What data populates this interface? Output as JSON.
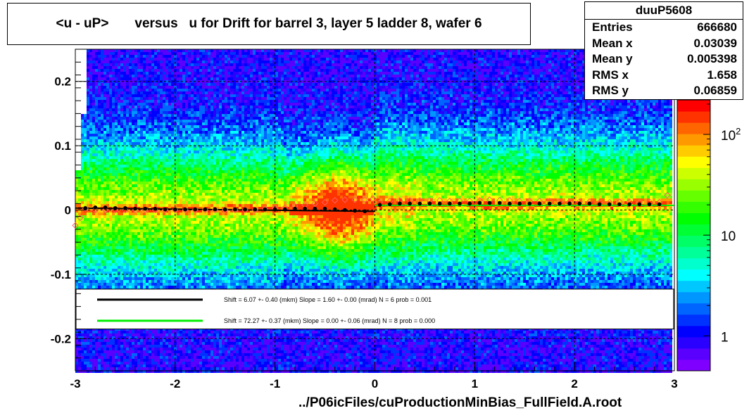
{
  "title": "<u - uP>       versus   u for Drift for barrel 3, layer 5 ladder 8, wafer 6",
  "footer": "../P06icFiles/cuProductionMinBias_FullField.A.root",
  "stats": {
    "name": "duuP5608",
    "rows": [
      {
        "label": "Entries",
        "value": "666680"
      },
      {
        "label": "Mean x",
        "value": "0.03039"
      },
      {
        "label": "Mean y",
        "value": "0.005398"
      },
      {
        "label": "RMS x",
        "value": "1.658"
      },
      {
        "label": "RMS y",
        "value": "0.06859"
      }
    ]
  },
  "legend": [
    {
      "color": "#000000",
      "text": "Shift =     6.07 +- 0.40 (mkm) Slope =     1.60 +- 0.00 (mrad)  N = 6 prob = 0.001"
    },
    {
      "color": "#00ee00",
      "text": "Shift =    72.27 +- 0.37 (mkm) Slope =     0.00 +- 0.06 (mrad)  N = 8 prob = 0.000"
    }
  ],
  "colorbar": {
    "labels": [
      {
        "text": "10",
        "sup": "2",
        "value": 100
      },
      {
        "text": "10",
        "sup": "",
        "value": 10
      },
      {
        "text": "1",
        "sup": "",
        "value": 1
      }
    ],
    "colors": [
      "#7f00ff",
      "#5a00ff",
      "#2a00ff",
      "#0000ff",
      "#0032ff",
      "#0064ff",
      "#0096ff",
      "#00c8ff",
      "#00ffff",
      "#00ffcc",
      "#00ff99",
      "#00ff66",
      "#00ff33",
      "#00ff00",
      "#33ff00",
      "#66ff00",
      "#99ff00",
      "#ccff00",
      "#ffff00",
      "#ffcc00",
      "#ff9900",
      "#ff6600",
      "#ff3300",
      "#ff0000"
    ]
  },
  "chart_data": {
    "type": "heatmap",
    "xlim": [
      -3,
      3
    ],
    "ylim": [
      -0.25,
      0.25
    ],
    "x_ticks": [
      -3,
      -2,
      -1,
      0,
      1,
      2,
      3
    ],
    "x_tick_labels": [
      "-3",
      "-2",
      "-1",
      "0",
      "1",
      "2",
      "3"
    ],
    "y_ticks": [
      -0.2,
      -0.1,
      0,
      0.1,
      0.2
    ],
    "y_tick_labels": [
      "-0.2",
      "-0.1",
      "0",
      "0.1",
      "0.2"
    ],
    "grid": true,
    "zscale": "log",
    "profile_black": {
      "x": [
        -2.9,
        -2.8,
        -2.7,
        -2.6,
        -2.5,
        -2.4,
        -2.3,
        -2.2,
        -2.1,
        -2.0,
        -1.9,
        -1.8,
        -1.7,
        -1.6,
        -1.5,
        -1.4,
        -1.3,
        -1.2,
        -1.1,
        -1.0,
        -0.9,
        -0.8,
        -0.7,
        -0.6,
        -0.5,
        -0.4,
        -0.3,
        -0.2,
        -0.1,
        0.05,
        0.15,
        0.25,
        0.35,
        0.45,
        0.55,
        0.65,
        0.75,
        0.85,
        0.95,
        1.05,
        1.15,
        1.25,
        1.35,
        1.45,
        1.55,
        1.65,
        1.75,
        1.85,
        1.95,
        2.05,
        2.15,
        2.25,
        2.35,
        2.45,
        2.55,
        2.65,
        2.75,
        2.85
      ],
      "y": [
        0.003,
        0.004,
        0.004,
        0.003,
        0.003,
        0.002,
        0.002,
        0.002,
        0.001,
        0.001,
        0.001,
        0.001,
        0.001,
        0.001,
        0.001,
        0.001,
        0.001,
        0.001,
        0.001,
        0.001,
        0.001,
        0.002,
        0.002,
        0.002,
        0.002,
        0.001,
        0.0,
        -0.001,
        -0.002,
        0.008,
        0.009,
        0.01,
        0.01,
        0.01,
        0.01,
        0.01,
        0.01,
        0.01,
        0.01,
        0.011,
        0.011,
        0.011,
        0.01,
        0.01,
        0.01,
        0.01,
        0.01,
        0.01,
        0.01,
        0.01,
        0.01,
        0.009,
        0.009,
        0.009,
        0.009,
        0.009,
        0.009,
        0.009
      ]
    },
    "profile_red": {
      "x": [
        -3.0,
        -2.95,
        -2.9,
        -2.8,
        -2.7,
        -2.6,
        -2.5,
        -2.4,
        -2.3,
        -2.2,
        -2.1,
        -2.0,
        -1.9,
        -1.8,
        -1.7,
        -1.6,
        -1.5,
        -1.4,
        -1.3,
        -1.2,
        -1.1,
        -1.0,
        -0.9,
        -0.8,
        -0.7,
        -0.6,
        -0.5,
        -0.4,
        -0.3,
        -0.2,
        -0.1,
        -0.02,
        0.05,
        0.15,
        0.25,
        0.35,
        0.45,
        0.55,
        0.65,
        0.75,
        0.85,
        0.95,
        1.05,
        1.15,
        1.25,
        1.35,
        1.45,
        1.55,
        1.65,
        1.75,
        1.85,
        1.95,
        2.05,
        2.15,
        2.25,
        2.35,
        2.45,
        2.55,
        2.65,
        2.75,
        2.85,
        2.93
      ],
      "y": [
        -0.024,
        -0.012,
        0.002,
        0.0,
        0.0,
        0.0,
        0.0,
        0.0,
        0.0,
        0.0,
        0.0,
        0.0,
        0.0,
        0.0,
        0.0,
        0.0,
        0.0,
        0.0,
        0.0,
        0.0,
        0.002,
        0.003,
        0.004,
        0.006,
        0.008,
        0.01,
        0.012,
        0.015,
        0.016,
        0.016,
        0.016,
        0.018,
        0.012,
        0.014,
        0.015,
        0.015,
        0.015,
        0.015,
        0.015,
        0.014,
        0.014,
        0.014,
        0.015,
        0.016,
        0.015,
        0.015,
        0.014,
        0.014,
        0.014,
        0.014,
        0.013,
        0.013,
        0.013,
        0.013,
        0.012,
        0.012,
        0.013,
        0.013,
        0.012,
        0.013,
        0.012,
        0.023
      ]
    },
    "fit_black": {
      "x": [
        -3,
        0
      ],
      "y": [
        0.003,
        -0.002
      ]
    },
    "fit_green": {
      "x": [
        0,
        3
      ],
      "y": [
        0.0072,
        0.0072
      ]
    }
  }
}
